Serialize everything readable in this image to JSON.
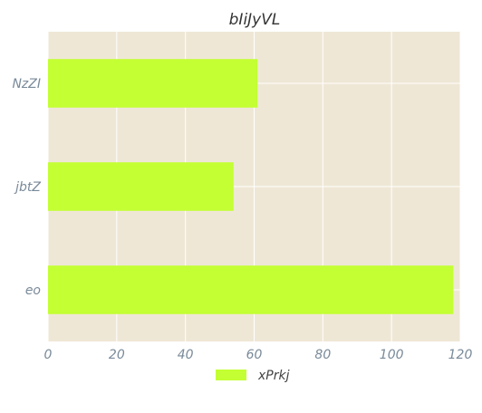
{
  "chart_data": {
    "type": "bar",
    "orientation": "horizontal",
    "title": "bIiJyVL",
    "xlabel": "",
    "ylabel": "",
    "categories": [
      "NzZI",
      "jbtZ",
      "eo"
    ],
    "series": [
      {
        "name": "xPrkj",
        "values": [
          61,
          54,
          118
        ],
        "color": "#c3ff33"
      }
    ],
    "xlim": [
      0,
      120
    ],
    "xticks": [
      0,
      20,
      40,
      60,
      80,
      100,
      120
    ],
    "grid": true,
    "legend_position": "bottom-center",
    "colors": {
      "plot_background": "#efe7d6",
      "grid": "#ffffff",
      "tick_text": "#7a8a99"
    }
  }
}
